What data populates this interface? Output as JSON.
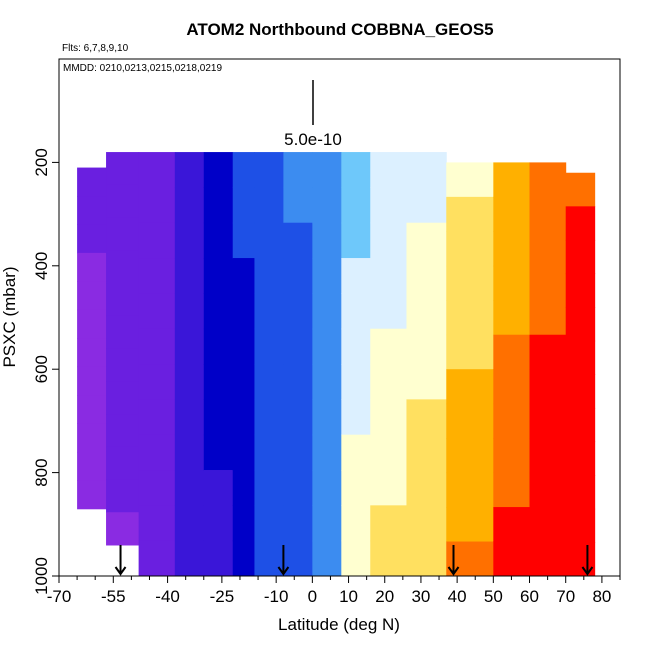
{
  "chart_data": {
    "type": "heatmap",
    "title": "ATOM2 Northbound COBBNA_GEOS5",
    "annotations": {
      "flights": "Flts: 6,7,8,9,10",
      "dates": "MMDD: 0210,0213,0215,0218,0219",
      "scale_label": "5.0e-10"
    },
    "xlabel": "Latitude (deg N)",
    "ylabel": "PSXC (mbar)",
    "xlim": [
      -70,
      85
    ],
    "ylim": [
      1000,
      0
    ],
    "x_ticks": [
      -70,
      -55,
      -40,
      -25,
      -10,
      0,
      10,
      20,
      30,
      40,
      50,
      60,
      70,
      80
    ],
    "x_tick_labels": [
      "-70",
      "-55",
      "-40",
      "-25",
      "-10",
      "0",
      "10",
      "20",
      "30",
      "40",
      "50",
      "60",
      "70",
      "80"
    ],
    "y_ticks": [
      200,
      400,
      600,
      800,
      1000
    ],
    "y_tick_labels": [
      "200",
      "400",
      "600",
      "800",
      "1000"
    ],
    "colormap": [
      "#8a2be2",
      "#6a1fe0",
      "#3a16d8",
      "#0000c8",
      "#1e50e6",
      "#3c8cf0",
      "#6ec8fa",
      "#dcf0ff",
      "#ffffd0",
      "#ffe060",
      "#ffb000",
      "#ff7000",
      "#ff0000"
    ],
    "flight_boundary_markers": [
      -53,
      -8,
      39,
      76
    ],
    "heatmap_bands": [
      {
        "lat": [
          -65,
          -57
        ],
        "p": [
          210,
          870
        ],
        "c": 0.05
      },
      {
        "lat": [
          -57,
          -48
        ],
        "p": [
          180,
          940
        ],
        "c": 0.08
      },
      {
        "lat": [
          -48,
          -38
        ],
        "p": [
          180,
          1000
        ],
        "c": 0.12
      },
      {
        "lat": [
          -38,
          -30
        ],
        "p": [
          180,
          1000
        ],
        "c": 0.18
      },
      {
        "lat": [
          -30,
          -22
        ],
        "p": [
          180,
          1000
        ],
        "c": 0.24
      },
      {
        "lat": [
          -22,
          -16
        ],
        "p": [
          180,
          1000
        ],
        "c": 0.3
      },
      {
        "lat": [
          -16,
          -8
        ],
        "p": [
          180,
          1000
        ],
        "c": 0.34
      },
      {
        "lat": [
          -8,
          0
        ],
        "p": [
          180,
          1000
        ],
        "c": 0.38
      },
      {
        "lat": [
          0,
          8
        ],
        "p": [
          180,
          1000
        ],
        "c": 0.42
      },
      {
        "lat": [
          8,
          16
        ],
        "p": [
          180,
          1000
        ],
        "c": 0.5
      },
      {
        "lat": [
          16,
          26
        ],
        "p": [
          180,
          1000
        ],
        "c": 0.55
      },
      {
        "lat": [
          26,
          37
        ],
        "p": [
          180,
          1000
        ],
        "c": 0.6
      },
      {
        "lat": [
          37,
          50
        ],
        "p": [
          200,
          1000
        ],
        "c": 0.7
      },
      {
        "lat": [
          50,
          60
        ],
        "p": [
          200,
          1000
        ],
        "c": 0.8
      },
      {
        "lat": [
          60,
          70
        ],
        "p": [
          200,
          1000
        ],
        "c": 0.88
      },
      {
        "lat": [
          70,
          78
        ],
        "p": [
          220,
          1000
        ],
        "c": 0.95
      }
    ]
  }
}
